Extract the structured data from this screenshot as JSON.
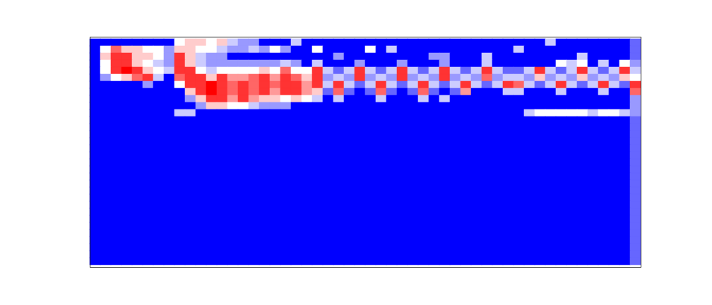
{
  "chart_data": {
    "type": "heatmap",
    "tick_labels": false,
    "zlim": [
      0,
      10
    ],
    "z": [
      [
        0,
        0,
        0,
        0,
        0,
        0,
        0,
        0,
        5,
        6,
        6,
        5,
        6,
        4,
        3,
        3,
        0,
        0,
        0,
        4,
        0,
        0,
        0,
        0,
        0,
        0,
        0,
        0,
        0,
        0,
        0,
        0,
        0,
        0,
        0,
        0,
        0,
        0,
        0,
        0,
        0,
        0,
        0,
        4,
        0,
        0,
        0,
        0,
        0,
        0,
        0,
        2
      ],
      [
        0,
        5,
        8,
        6,
        6,
        5,
        5,
        3,
        6,
        6,
        5,
        5,
        4,
        3,
        3,
        4,
        3,
        5,
        3,
        0,
        0,
        5,
        0,
        0,
        0,
        0,
        5,
        0,
        4,
        0,
        0,
        0,
        0,
        0,
        0,
        0,
        0,
        0,
        0,
        0,
        4,
        0,
        0,
        0,
        0,
        0,
        0,
        0,
        0,
        0,
        0,
        2
      ],
      [
        0,
        6,
        9,
        9,
        6,
        6,
        5,
        3,
        9,
        6,
        4,
        3,
        3,
        0,
        0,
        0,
        0,
        0,
        0,
        0,
        0,
        0,
        0,
        3,
        0,
        0,
        0,
        0,
        0,
        0,
        0,
        0,
        3,
        3,
        0,
        0,
        0,
        4,
        0,
        0,
        0,
        0,
        0,
        0,
        0,
        0,
        4,
        0,
        0,
        0,
        0,
        2
      ],
      [
        0,
        5,
        9,
        9,
        6,
        5,
        4,
        3,
        9,
        6,
        4,
        3,
        3,
        3,
        3,
        3,
        3,
        3,
        4,
        3,
        0,
        4,
        0,
        0,
        0,
        3,
        0,
        0,
        0,
        3,
        0,
        0,
        0,
        3,
        0,
        0,
        0,
        4,
        0,
        0,
        0,
        0,
        0,
        0,
        5,
        4,
        5,
        0,
        4,
        0,
        5,
        3
      ],
      [
        0,
        5,
        9,
        10,
        9,
        6,
        5,
        4,
        9,
        9,
        5,
        4,
        5,
        5,
        5,
        5,
        6,
        5,
        8,
        5,
        5,
        9,
        4,
        2,
        4,
        9,
        4,
        2,
        4,
        9,
        4,
        2,
        4,
        9,
        4,
        2,
        4,
        9,
        4,
        2,
        2,
        4,
        9,
        4,
        2,
        4,
        9,
        4,
        2,
        4,
        9,
        4
      ],
      [
        0,
        3,
        5,
        6,
        8,
        9,
        4,
        0,
        8,
        9,
        9,
        6,
        9,
        7,
        7,
        8,
        9,
        7,
        9,
        8,
        6,
        9,
        3,
        4,
        3,
        9,
        3,
        4,
        3,
        9,
        3,
        4,
        3,
        9,
        3,
        4,
        3,
        8,
        3,
        4,
        4,
        3,
        6,
        3,
        4,
        3,
        6,
        3,
        4,
        3,
        6,
        5
      ],
      [
        0,
        0,
        0,
        0,
        0,
        3,
        0,
        0,
        5,
        9,
        9,
        10,
        9,
        8,
        9,
        8,
        9,
        8,
        9,
        9,
        7,
        9,
        4,
        9,
        4,
        2,
        4,
        9,
        4,
        2,
        4,
        9,
        4,
        2,
        4,
        9,
        4,
        2,
        4,
        9,
        8,
        4,
        2,
        4,
        9,
        4,
        2,
        4,
        9,
        4,
        2,
        9
      ],
      [
        0,
        0,
        0,
        0,
        0,
        0,
        0,
        0,
        0,
        6,
        9,
        10,
        9,
        8,
        9,
        8,
        9,
        7,
        9,
        9,
        7,
        6,
        2,
        8,
        2,
        0,
        2,
        8,
        2,
        0,
        2,
        8,
        2,
        0,
        2,
        7,
        0,
        0,
        0,
        4,
        4,
        0,
        0,
        0,
        4,
        0,
        0,
        0,
        4,
        0,
        0,
        8
      ],
      [
        0,
        0,
        0,
        0,
        0,
        0,
        0,
        0,
        0,
        3,
        6,
        9,
        9,
        7,
        9,
        7,
        6,
        6,
        5,
        6,
        5,
        4,
        0,
        4,
        0,
        0,
        0,
        4,
        0,
        0,
        0,
        4,
        0,
        4,
        0,
        0,
        0,
        0,
        0,
        0,
        0,
        0,
        0,
        0,
        0,
        0,
        0,
        0,
        0,
        0,
        0,
        3
      ],
      [
        0,
        0,
        0,
        0,
        0,
        0,
        0,
        0,
        0,
        0,
        3,
        6,
        6,
        5,
        5,
        4,
        3,
        3,
        3,
        0,
        0,
        0,
        0,
        0,
        0,
        0,
        0,
        0,
        0,
        0,
        0,
        0,
        0,
        0,
        0,
        0,
        0,
        0,
        0,
        0,
        0,
        0,
        0,
        0,
        0,
        0,
        0,
        0,
        0,
        0,
        0,
        3
      ],
      [
        0,
        0,
        0,
        0,
        0,
        0,
        0,
        0,
        4,
        4,
        0,
        0,
        0,
        0,
        0,
        0,
        0,
        0,
        0,
        0,
        0,
        0,
        0,
        0,
        0,
        0,
        0,
        0,
        0,
        0,
        0,
        0,
        0,
        0,
        0,
        0,
        0,
        0,
        0,
        0,
        0,
        4,
        5,
        5,
        5,
        5,
        5,
        4,
        5,
        5,
        4,
        3
      ],
      [
        0,
        0,
        0,
        0,
        0,
        0,
        0,
        0,
        0,
        0,
        0,
        0,
        0,
        0,
        0,
        0,
        0,
        0,
        0,
        0,
        0,
        0,
        0,
        0,
        0,
        0,
        0,
        0,
        0,
        0,
        0,
        0,
        0,
        0,
        0,
        0,
        0,
        0,
        0,
        0,
        0,
        0,
        0,
        0,
        0,
        0,
        0,
        0,
        0,
        0,
        0,
        2
      ],
      [
        0,
        0,
        0,
        0,
        0,
        0,
        0,
        0,
        0,
        0,
        0,
        0,
        0,
        0,
        0,
        0,
        0,
        0,
        0,
        0,
        0,
        0,
        0,
        0,
        0,
        0,
        0,
        0,
        0,
        0,
        0,
        0,
        0,
        0,
        0,
        0,
        0,
        0,
        0,
        0,
        0,
        0,
        0,
        0,
        0,
        0,
        0,
        0,
        0,
        0,
        0,
        2
      ],
      [
        0,
        0,
        0,
        0,
        0,
        0,
        0,
        0,
        0,
        0,
        0,
        0,
        0,
        0,
        0,
        0,
        0,
        0,
        0,
        0,
        0,
        0,
        0,
        0,
        0,
        0,
        0,
        0,
        0,
        0,
        0,
        0,
        0,
        0,
        0,
        0,
        0,
        0,
        0,
        0,
        0,
        0,
        0,
        0,
        0,
        0,
        0,
        0,
        0,
        0,
        0,
        2
      ],
      [
        0,
        0,
        0,
        0,
        0,
        0,
        0,
        0,
        0,
        0,
        0,
        0,
        0,
        0,
        0,
        0,
        0,
        0,
        0,
        0,
        0,
        0,
        0,
        0,
        0,
        0,
        0,
        0,
        0,
        0,
        0,
        0,
        0,
        0,
        0,
        0,
        0,
        0,
        0,
        0,
        0,
        0,
        0,
        0,
        0,
        0,
        0,
        0,
        0,
        0,
        0,
        2
      ],
      [
        0,
        0,
        0,
        0,
        0,
        0,
        0,
        0,
        0,
        0,
        0,
        0,
        0,
        0,
        0,
        0,
        0,
        0,
        0,
        0,
        0,
        0,
        0,
        0,
        0,
        0,
        0,
        0,
        0,
        0,
        0,
        0,
        0,
        0,
        0,
        0,
        0,
        0,
        0,
        0,
        0,
        0,
        0,
        0,
        0,
        0,
        0,
        0,
        0,
        0,
        0,
        2
      ],
      [
        0,
        0,
        0,
        0,
        0,
        0,
        0,
        0,
        0,
        0,
        0,
        0,
        0,
        0,
        0,
        0,
        0,
        0,
        0,
        0,
        0,
        0,
        0,
        0,
        0,
        0,
        0,
        0,
        0,
        0,
        0,
        0,
        0,
        0,
        0,
        0,
        0,
        0,
        0,
        0,
        0,
        0,
        0,
        0,
        0,
        0,
        0,
        0,
        0,
        0,
        0,
        2
      ],
      [
        0,
        0,
        0,
        0,
        0,
        0,
        0,
        0,
        0,
        0,
        0,
        0,
        0,
        0,
        0,
        0,
        0,
        0,
        0,
        0,
        0,
        0,
        0,
        0,
        0,
        0,
        0,
        0,
        0,
        0,
        0,
        0,
        0,
        0,
        0,
        0,
        0,
        0,
        0,
        0,
        0,
        0,
        0,
        0,
        0,
        0,
        0,
        0,
        0,
        0,
        0,
        2
      ],
      [
        0,
        0,
        0,
        0,
        0,
        0,
        0,
        0,
        0,
        0,
        0,
        0,
        0,
        0,
        0,
        0,
        0,
        0,
        0,
        0,
        0,
        0,
        0,
        0,
        0,
        0,
        0,
        0,
        0,
        0,
        0,
        0,
        0,
        0,
        0,
        0,
        0,
        0,
        0,
        0,
        0,
        0,
        0,
        0,
        0,
        0,
        0,
        0,
        0,
        0,
        0,
        2
      ],
      [
        0,
        0,
        0,
        0,
        0,
        0,
        0,
        0,
        0,
        0,
        0,
        0,
        0,
        0,
        0,
        0,
        0,
        0,
        0,
        0,
        0,
        0,
        0,
        0,
        0,
        0,
        0,
        0,
        0,
        0,
        0,
        0,
        0,
        0,
        0,
        0,
        0,
        0,
        0,
        0,
        0,
        0,
        0,
        0,
        0,
        0,
        0,
        0,
        0,
        0,
        0,
        2
      ],
      [
        0,
        0,
        0,
        0,
        0,
        0,
        0,
        0,
        0,
        0,
        0,
        0,
        0,
        0,
        0,
        0,
        0,
        0,
        0,
        0,
        0,
        0,
        0,
        0,
        0,
        0,
        0,
        0,
        0,
        0,
        0,
        0,
        0,
        0,
        0,
        0,
        0,
        0,
        0,
        0,
        0,
        0,
        0,
        0,
        0,
        0,
        0,
        0,
        0,
        0,
        0,
        2
      ],
      [
        0,
        0,
        0,
        0,
        0,
        0,
        0,
        0,
        0,
        0,
        0,
        0,
        0,
        0,
        0,
        0,
        0,
        0,
        0,
        0,
        0,
        0,
        0,
        0,
        0,
        0,
        0,
        0,
        0,
        0,
        0,
        0,
        0,
        0,
        0,
        0,
        0,
        0,
        0,
        0,
        0,
        0,
        0,
        0,
        0,
        0,
        0,
        0,
        0,
        0,
        0,
        2
      ],
      [
        0,
        0,
        0,
        0,
        0,
        0,
        0,
        0,
        0,
        0,
        0,
        0,
        0,
        0,
        0,
        0,
        0,
        0,
        0,
        0,
        0,
        0,
        0,
        0,
        0,
        0,
        0,
        0,
        0,
        0,
        0,
        0,
        0,
        0,
        0,
        0,
        0,
        0,
        0,
        0,
        0,
        0,
        0,
        0,
        0,
        0,
        0,
        0,
        0,
        0,
        0,
        2
      ],
      [
        0,
        0,
        0,
        0,
        0,
        0,
        0,
        0,
        0,
        0,
        0,
        0,
        0,
        0,
        0,
        0,
        0,
        0,
        0,
        0,
        0,
        0,
        0,
        0,
        0,
        0,
        0,
        0,
        0,
        0,
        0,
        0,
        0,
        0,
        0,
        0,
        0,
        0,
        0,
        0,
        0,
        0,
        0,
        0,
        0,
        0,
        0,
        0,
        0,
        0,
        0,
        2
      ],
      [
        0,
        0,
        0,
        0,
        0,
        0,
        0,
        0,
        0,
        0,
        0,
        0,
        0,
        0,
        0,
        0,
        0,
        0,
        0,
        0,
        0,
        0,
        0,
        0,
        0,
        0,
        0,
        0,
        0,
        0,
        0,
        0,
        0,
        0,
        0,
        0,
        0,
        0,
        0,
        0,
        0,
        0,
        0,
        0,
        0,
        0,
        0,
        0,
        0,
        0,
        0,
        2
      ],
      [
        0,
        0,
        0,
        0,
        0,
        0,
        0,
        0,
        0,
        0,
        0,
        0,
        0,
        0,
        0,
        0,
        0,
        0,
        0,
        0,
        0,
        0,
        0,
        0,
        0,
        0,
        0,
        0,
        0,
        0,
        0,
        0,
        0,
        0,
        0,
        0,
        0,
        0,
        0,
        0,
        0,
        0,
        0,
        0,
        0,
        0,
        0,
        0,
        0,
        0,
        0,
        2
      ],
      [
        0,
        0,
        0,
        0,
        0,
        0,
        0,
        0,
        0,
        0,
        0,
        0,
        0,
        0,
        0,
        0,
        0,
        0,
        0,
        0,
        0,
        0,
        0,
        0,
        0,
        0,
        0,
        0,
        0,
        0,
        0,
        0,
        0,
        0,
        0,
        0,
        0,
        0,
        0,
        0,
        0,
        0,
        0,
        0,
        0,
        0,
        0,
        0,
        0,
        0,
        0,
        2
      ],
      [
        0,
        0,
        0,
        0,
        0,
        0,
        0,
        0,
        0,
        0,
        0,
        0,
        0,
        0,
        0,
        0,
        0,
        0,
        0,
        0,
        0,
        0,
        0,
        0,
        0,
        0,
        0,
        0,
        0,
        0,
        0,
        0,
        0,
        0,
        0,
        0,
        0,
        0,
        0,
        0,
        0,
        0,
        0,
        0,
        0,
        0,
        0,
        0,
        0,
        0,
        0,
        2
      ],
      [
        0,
        0,
        0,
        0,
        0,
        0,
        0,
        0,
        0,
        0,
        0,
        0,
        0,
        0,
        0,
        0,
        0,
        0,
        0,
        0,
        0,
        0,
        0,
        0,
        0,
        0,
        0,
        0,
        0,
        0,
        0,
        0,
        0,
        0,
        0,
        0,
        0,
        0,
        0,
        0,
        0,
        0,
        0,
        0,
        0,
        0,
        0,
        0,
        0,
        0,
        0,
        2
      ],
      [
        0,
        0,
        0,
        0,
        0,
        0,
        0,
        0,
        0,
        0,
        0,
        0,
        0,
        0,
        0,
        0,
        0,
        0,
        0,
        0,
        0,
        0,
        0,
        0,
        0,
        0,
        0,
        0,
        0,
        0,
        0,
        0,
        0,
        0,
        0,
        0,
        0,
        0,
        0,
        0,
        0,
        0,
        0,
        0,
        0,
        0,
        0,
        0,
        0,
        0,
        0,
        2
      ],
      [
        0,
        0,
        0,
        0,
        0,
        0,
        0,
        0,
        0,
        0,
        0,
        0,
        0,
        0,
        0,
        0,
        0,
        0,
        0,
        0,
        0,
        0,
        0,
        0,
        0,
        0,
        0,
        0,
        0,
        0,
        0,
        0,
        0,
        0,
        0,
        0,
        0,
        0,
        0,
        0,
        0,
        0,
        0,
        0,
        0,
        0,
        0,
        0,
        0,
        0,
        0,
        2
      ],
      [
        0,
        0,
        0,
        0,
        0,
        0,
        0,
        0,
        0,
        0,
        0,
        0,
        0,
        0,
        0,
        0,
        0,
        0,
        0,
        0,
        0,
        0,
        0,
        0,
        0,
        0,
        0,
        0,
        0,
        0,
        0,
        0,
        0,
        0,
        0,
        0,
        0,
        0,
        0,
        0,
        0,
        0,
        0,
        0,
        0,
        0,
        0,
        0,
        0,
        0,
        0,
        2
      ]
    ]
  }
}
